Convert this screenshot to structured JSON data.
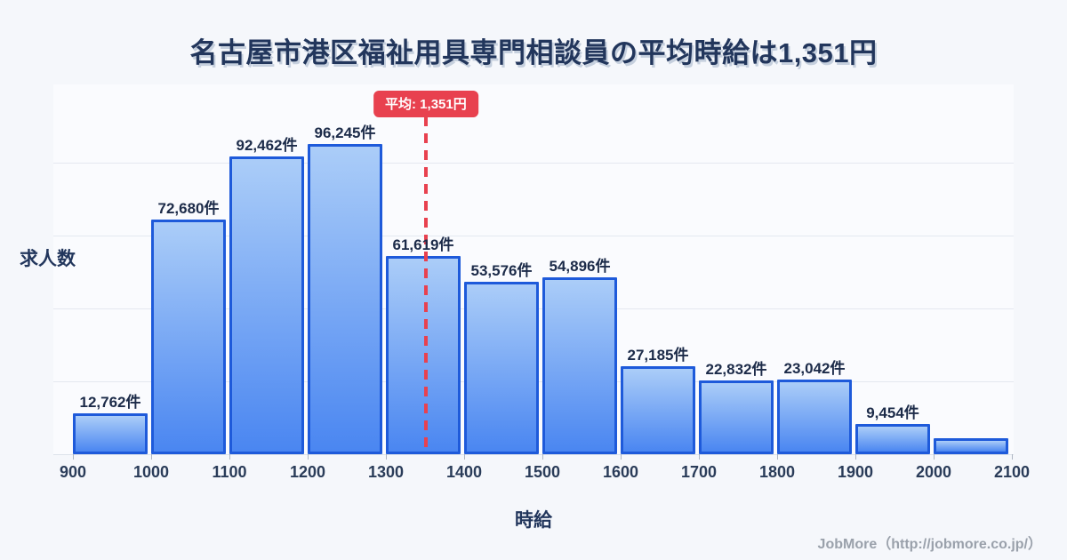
{
  "title": "名古屋市港区福祉用具専門相談員の平均時給は1,351円",
  "chart_data": {
    "type": "bar",
    "subtype": "histogram",
    "title": "名古屋市港区福祉用具専門相談員の平均時給は1,351円",
    "xlabel": "時給",
    "ylabel": "求人数",
    "bin_edges": [
      900,
      1000,
      1100,
      1200,
      1300,
      1400,
      1500,
      1600,
      1700,
      1800,
      1900,
      2000,
      2100
    ],
    "x_tick_labels": [
      "900",
      "1000",
      "1100",
      "1200",
      "1300",
      "1400",
      "1500",
      "1600",
      "1700",
      "1800",
      "1900",
      "2000",
      "2100"
    ],
    "values": [
      12762,
      72680,
      92462,
      96245,
      61619,
      53576,
      54896,
      27185,
      22832,
      23042,
      9454,
      5100
    ],
    "bar_labels": [
      "12,762件",
      "72,680件",
      "92,462件",
      "96,245件",
      "61,619件",
      "53,576件",
      "54,896件",
      "27,185件",
      "22,832件",
      "23,042件",
      "9,454件",
      ""
    ],
    "mean_line": {
      "value": 1351,
      "label": "平均: 1,351円",
      "style": "dashed"
    },
    "ylim": [
      0,
      100000
    ],
    "grid": true,
    "legend": false
  },
  "footer": {
    "credit": "JobMore（http://jobmore.co.jp/）"
  },
  "colors": {
    "page_bg": "#f5f7fb",
    "plot_bg": "#fafbfe",
    "bar_gradient_top": "#abcdf8",
    "bar_gradient_bottom": "#4a86f1",
    "bar_border": "#1e5ada",
    "gridline": "#e4e8f0",
    "mean_red": "#e8414f",
    "title_text": "#22365c",
    "value_label_text": "#1c2b49",
    "footer_text": "#9aa1ab"
  }
}
